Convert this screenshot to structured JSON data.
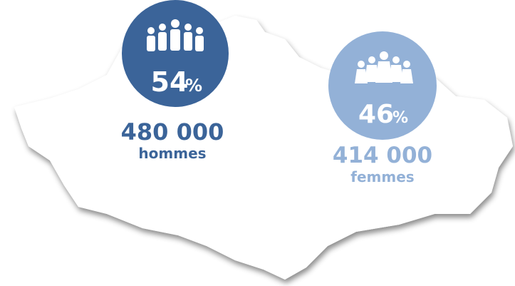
{
  "groups": [
    {
      "percent": 54,
      "unit": "%",
      "count": "480 000",
      "label": "hommes"
    },
    {
      "percent": 46,
      "unit": "%",
      "count": "414 000",
      "label": "femmes"
    }
  ]
}
